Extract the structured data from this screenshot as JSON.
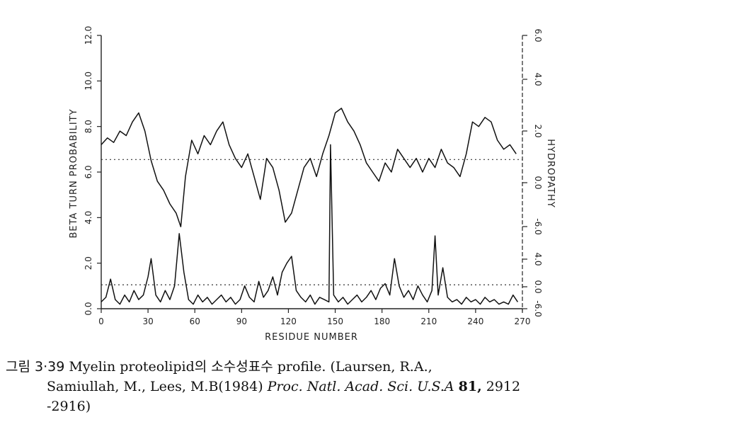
{
  "chart_data": {
    "type": "line",
    "xlabel": "RESIDUE NUMBER",
    "ylabel": "BETA TURN PROBABILITY",
    "ylabel_right": "HYDROPATHY",
    "xlim": [
      0,
      270
    ],
    "ylim": [
      0,
      12
    ],
    "x_ticks": [
      0,
      30,
      60,
      90,
      120,
      150,
      180,
      210,
      240,
      270
    ],
    "y_ticks": [
      0,
      2,
      4,
      6,
      8,
      10,
      12
    ],
    "y_tick_labels": [
      "0.0",
      "2.0",
      "4.0",
      "6.0",
      "8.0",
      "10.0",
      "12.0"
    ],
    "right_tick_labels_upper": [
      "-6.0",
      "0.0",
      "2.0",
      "4.0",
      "6.0"
    ],
    "right_tick_labels_lower": [
      "-6.0",
      "0.0",
      "4.0"
    ],
    "upper_reference_line": 6.55,
    "lower_reference_line": 1.05,
    "series": [
      {
        "x": [
          0,
          4,
          8,
          12,
          16,
          20,
          24,
          28,
          32,
          36,
          40,
          44,
          48,
          51,
          54,
          58,
          62,
          66,
          70,
          74,
          78,
          82,
          86,
          90,
          94,
          98,
          102,
          106,
          110,
          114,
          118,
          122,
          126,
          130,
          134,
          138,
          142,
          146,
          150,
          154,
          158,
          162,
          166,
          170,
          174,
          178,
          182,
          186,
          190,
          194,
          198,
          202,
          206,
          210,
          214,
          218,
          222,
          226,
          230,
          234,
          238,
          242,
          246,
          250,
          254,
          258,
          262,
          266
        ],
        "values": [
          7.2,
          7.5,
          7.3,
          7.8,
          7.6,
          8.2,
          8.6,
          7.8,
          6.5,
          5.6,
          5.2,
          4.6,
          4.2,
          3.6,
          5.8,
          7.4,
          6.8,
          7.6,
          7.2,
          7.8,
          8.2,
          7.2,
          6.6,
          6.2,
          6.8,
          5.8,
          4.8,
          6.6,
          6.2,
          5.2,
          3.8,
          4.2,
          5.2,
          6.2,
          6.6,
          5.8,
          6.8,
          7.6,
          8.6,
          8.8,
          8.2,
          7.8,
          7.2,
          6.4,
          6.0,
          5.6,
          6.4,
          6.0,
          7.0,
          6.6,
          6.2,
          6.6,
          6.0,
          6.6,
          6.2,
          7.0,
          6.4,
          6.2,
          5.8,
          6.8,
          8.2,
          8.0,
          8.4,
          8.2,
          7.4,
          7.0,
          7.2,
          6.8
        ]
      },
      {
        "x": [
          0,
          3,
          6,
          9,
          12,
          15,
          18,
          21,
          24,
          27,
          30,
          32,
          35,
          38,
          41,
          44,
          47,
          50,
          53,
          56,
          59,
          62,
          65,
          68,
          71,
          74,
          77,
          80,
          83,
          86,
          89,
          92,
          95,
          98,
          101,
          104,
          107,
          110,
          113,
          116,
          119,
          122,
          125,
          128,
          131,
          134,
          137,
          140,
          143,
          146,
          147,
          149,
          152,
          155,
          158,
          161,
          164,
          167,
          170,
          173,
          176,
          179,
          182,
          185,
          188,
          191,
          194,
          197,
          200,
          203,
          206,
          209,
          212,
          214,
          216,
          219,
          222,
          225,
          228,
          231,
          234,
          237,
          240,
          243,
          246,
          249,
          252,
          255,
          258,
          261,
          264,
          267
        ],
        "values": [
          0.3,
          0.5,
          1.3,
          0.4,
          0.2,
          0.6,
          0.3,
          0.8,
          0.4,
          0.6,
          1.4,
          2.2,
          0.6,
          0.3,
          0.8,
          0.4,
          1.0,
          3.3,
          1.6,
          0.4,
          0.2,
          0.6,
          0.3,
          0.5,
          0.2,
          0.4,
          0.6,
          0.3,
          0.5,
          0.2,
          0.4,
          1.0,
          0.5,
          0.3,
          1.2,
          0.5,
          0.8,
          1.4,
          0.6,
          1.6,
          2.0,
          2.3,
          0.8,
          0.5,
          0.3,
          0.6,
          0.2,
          0.5,
          0.4,
          0.3,
          7.2,
          0.6,
          0.3,
          0.5,
          0.2,
          0.4,
          0.6,
          0.3,
          0.5,
          0.8,
          0.4,
          0.9,
          1.1,
          0.6,
          2.2,
          1.0,
          0.5,
          0.8,
          0.4,
          1.0,
          0.6,
          0.3,
          0.8,
          3.2,
          0.6,
          1.8,
          0.5,
          0.3,
          0.4,
          0.2,
          0.5,
          0.3,
          0.4,
          0.2,
          0.5,
          0.3,
          0.4,
          0.2,
          0.3,
          0.2,
          0.6,
          0.3
        ]
      }
    ]
  },
  "caption": {
    "lead": "그림 3·39",
    "title": "Myelin proteolipid의 소수성표수 profile.",
    "ref_authors_1": "(Laursen, R.A.,",
    "ref_authors_2": "Samiullah, M., Lees, M.B(1984)",
    "journal": "Proc. Natl. Acad. Sci. U.S.A",
    "volume": "81,",
    "pages_1": "2912",
    "pages_2": "-2916)"
  }
}
